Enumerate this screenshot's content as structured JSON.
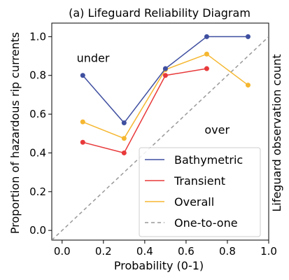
{
  "chart_data": {
    "type": "line",
    "title": "(a) Lifeguard Reliability Diagram",
    "xlabel": "Probability (0-1)",
    "ylabel": "Proportion of hazardous rip currents",
    "y2label": "Lifeguard observation count",
    "xlim": [
      -0.05,
      1.0
    ],
    "ylim": [
      -0.05,
      1.07
    ],
    "xticks": [
      "0.0",
      "0.2",
      "0.4",
      "0.6",
      "0.8",
      "1.0"
    ],
    "yticks": [
      "0.0",
      "0.2",
      "0.4",
      "0.6",
      "0.8",
      "1.0"
    ],
    "xtick_values": [
      0.0,
      0.2,
      0.4,
      0.6,
      0.8,
      1.0
    ],
    "ytick_values": [
      0.0,
      0.2,
      0.4,
      0.6,
      0.8,
      1.0
    ],
    "grid": false,
    "legend_position": "bottom-right",
    "annotations": [
      {
        "text": "under",
        "x": 0.15,
        "y": 0.87
      },
      {
        "text": "over",
        "x": 0.75,
        "y": 0.5
      }
    ],
    "series": [
      {
        "name": "Bathymetric",
        "color": "#3f4fa0",
        "x": [
          0.1,
          0.3,
          0.5,
          0.7,
          0.9
        ],
        "y": [
          0.8,
          0.555,
          0.835,
          1.0,
          1.0
        ]
      },
      {
        "name": "Transient",
        "color": "#e8393a",
        "x": [
          0.1,
          0.3,
          0.5,
          0.7
        ],
        "y": [
          0.455,
          0.4,
          0.8,
          0.835
        ]
      },
      {
        "name": "Overall",
        "color": "#f5b730",
        "x": [
          0.1,
          0.3,
          0.5,
          0.7,
          0.9
        ],
        "y": [
          0.56,
          0.475,
          0.83,
          0.91,
          0.75
        ]
      },
      {
        "name": "One-to-one",
        "color": "#999999",
        "dashed": true,
        "x": [
          -0.05,
          1.0
        ],
        "y": [
          -0.05,
          1.0
        ]
      }
    ]
  }
}
